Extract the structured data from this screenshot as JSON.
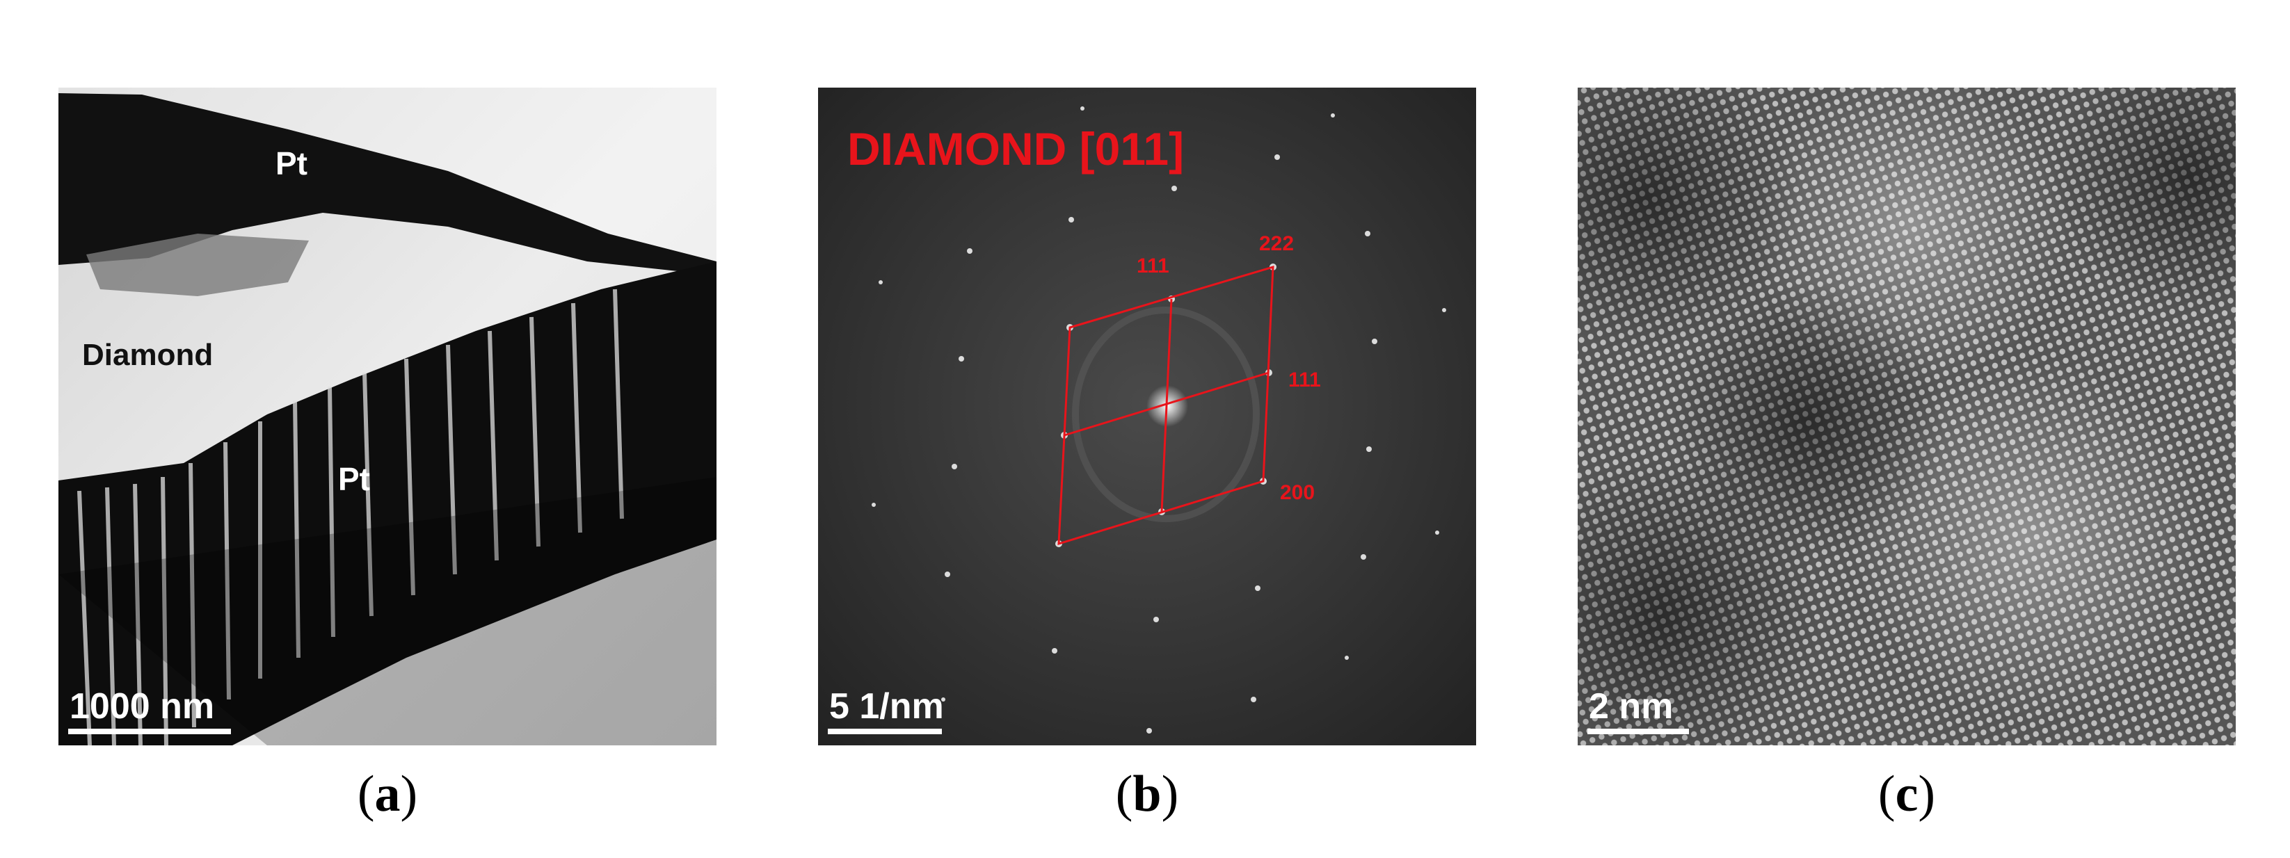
{
  "panels": {
    "a": {
      "labels": {
        "pt_top": "Pt",
        "diamond": "Diamond",
        "pt_bottom": "Pt"
      },
      "scale_bar": "1000 nm",
      "caption": "a"
    },
    "b": {
      "title": "DIAMOND [011]",
      "indices": {
        "i111a": "111",
        "i222": "222",
        "i111b": "111",
        "i200": "200"
      },
      "scale_bar": "5 1/nm",
      "caption": "b"
    },
    "c": {
      "scale_bar": "2 nm",
      "caption": "c"
    }
  }
}
